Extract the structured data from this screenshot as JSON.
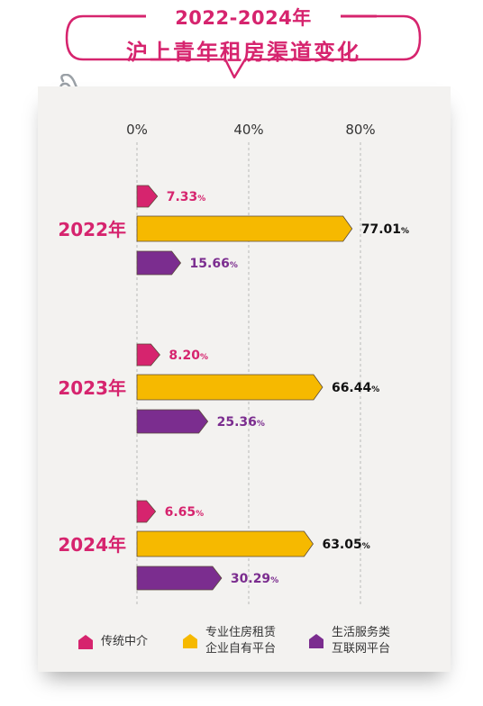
{
  "title": {
    "years": "2022-2024年",
    "main": "沪上青年租房渠道变化"
  },
  "colors": {
    "traditional": "#d6246e",
    "professional": "#f6b900",
    "platform": "#7b2d8f",
    "title": "#d6246e"
  },
  "icons": [
    "paperclip-icon",
    "pentagon-icon"
  ],
  "legend": {
    "items": [
      {
        "label_1": "传统中介",
        "label_2": ""
      },
      {
        "label_1": "专业住房租赁",
        "label_2": "企业自有平台"
      },
      {
        "label_1": "生活服务类",
        "label_2": "互联网平台"
      }
    ]
  },
  "chart_data": {
    "type": "bar",
    "orientation": "horizontal",
    "categories": [
      "2022年",
      "2023年",
      "2024年"
    ],
    "series": [
      {
        "name": "传统中介",
        "values": [
          7.33,
          8.2,
          6.65
        ],
        "labels": [
          "7.33%",
          "8.20%",
          "6.65%"
        ]
      },
      {
        "name": "专业住房租赁企业自有平台",
        "values": [
          77.01,
          66.44,
          63.05
        ],
        "labels": [
          "77.01%",
          "66.44%",
          "63.05%"
        ]
      },
      {
        "name": "生活服务类互联网平台",
        "values": [
          15.66,
          25.36,
          30.29
        ],
        "labels": [
          "15.66%",
          "25.36%",
          "30.29%"
        ]
      }
    ],
    "x_ticks": [
      "0%",
      "40%",
      "80%"
    ],
    "xlim": [
      0,
      100
    ],
    "grid": true,
    "legend_position": "bottom"
  }
}
